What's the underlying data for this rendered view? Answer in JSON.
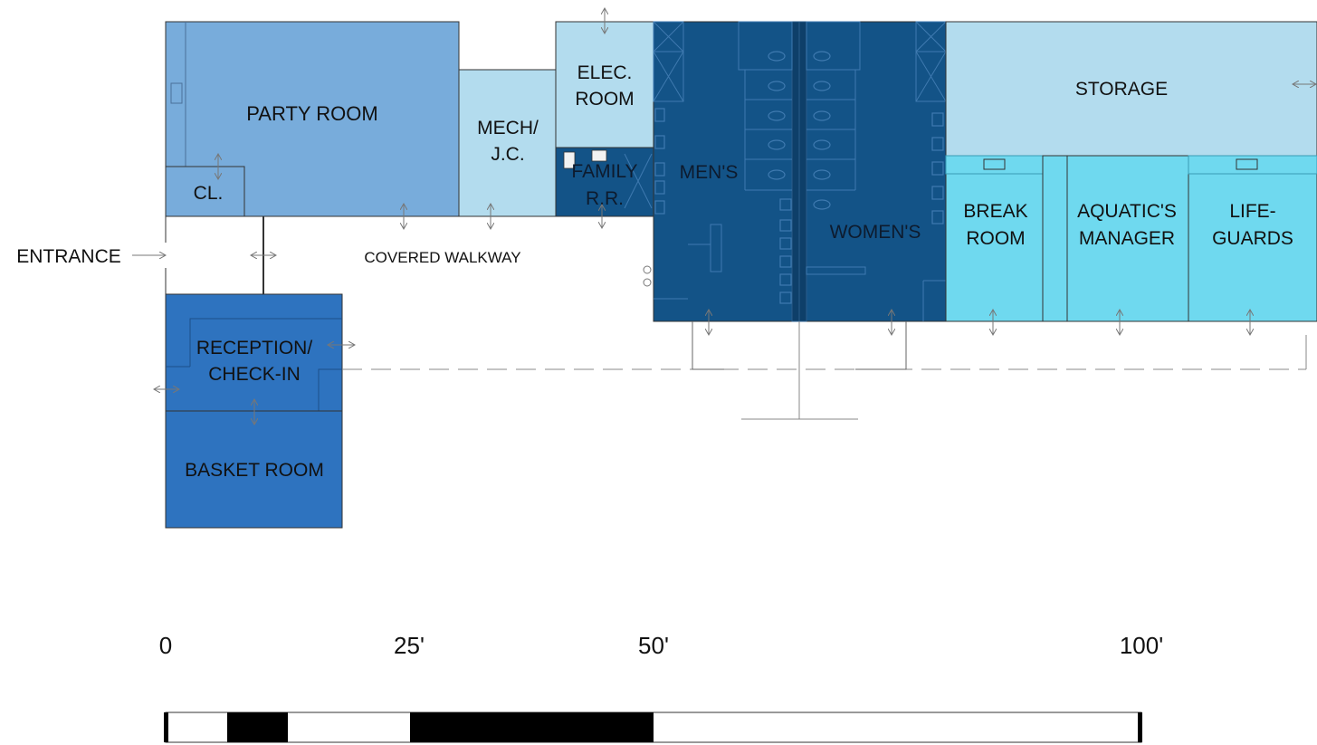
{
  "colors": {
    "party_room": "#78acdb",
    "closet": "#78acdb",
    "mech": "#b3dcee",
    "elec": "#b3dcee",
    "storage": "#b3dcee",
    "family_rr": "#135387",
    "restrooms": "#135387",
    "reception": "#2e73bf",
    "basket": "#2e73bf",
    "staff_rooms": "#6fd9ef",
    "outline": "#333333",
    "arrow": "#777777"
  },
  "rooms": {
    "party_room": "PARTY ROOM",
    "closet": "CL.",
    "mech_line1": "MECH/",
    "mech_line2": "J.C.",
    "elec_line1": "ELEC.",
    "elec_line2": "ROOM",
    "family_line1": "FAMILY",
    "family_line2": "R.R.",
    "mens": "MEN'S",
    "womens": "WOMEN'S",
    "storage": "STORAGE",
    "break_line1": "BREAK",
    "break_line2": "ROOM",
    "aquatics_line1": "AQUATIC'S",
    "aquatics_line2": "MANAGER",
    "lifeguards_line1": "LIFE-",
    "lifeguards_line2": "GUARDS",
    "reception_line1": "RECEPTION/",
    "reception_line2": "CHECK-IN",
    "basket_room": "BASKET ROOM"
  },
  "labels": {
    "entrance": "ENTRANCE",
    "covered_walkway": "COVERED WALKWAY"
  },
  "scale_bar": {
    "ticks": [
      "0",
      "25'",
      "50'",
      "100'"
    ]
  }
}
